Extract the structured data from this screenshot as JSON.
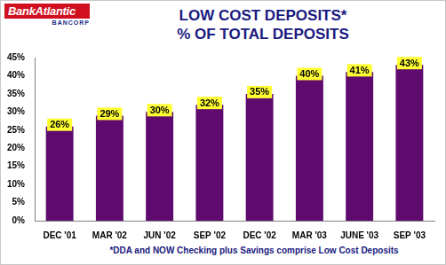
{
  "chart_data": {
    "type": "bar",
    "title": "LOW COST DEPOSITS*",
    "subtitle": "% OF TOTAL DEPOSITS",
    "logo": {
      "name": "BankAtlantic",
      "subtitle": "BANCORP"
    },
    "annotations": [
      "*DDA and NOW Checking plus Savings comprise Low Cost Deposits"
    ],
    "categories": [
      "DEC '01",
      "MAR '02",
      "JUN '02",
      "SEP '02",
      "DEC '02",
      "MAR '03",
      "JUNE '03",
      "SEP '03"
    ],
    "values": [
      26,
      29,
      30,
      32,
      35,
      40,
      41,
      43
    ],
    "value_labels": [
      "26%",
      "29%",
      "30%",
      "32%",
      "35%",
      "40%",
      "41%",
      "43%"
    ],
    "data_labels": true,
    "color": "#5e0a6e",
    "ylim": [
      0,
      45
    ],
    "yticks": [
      {
        "value": 0,
        "label": "0%"
      },
      {
        "value": 5,
        "label": "5%"
      },
      {
        "value": 10,
        "label": "10%"
      },
      {
        "value": 15,
        "label": "15%"
      },
      {
        "value": 20,
        "label": "20%"
      },
      {
        "value": 25,
        "label": "25%"
      },
      {
        "value": 30,
        "label": "30%"
      },
      {
        "value": 35,
        "label": "35%"
      },
      {
        "value": 40,
        "label": "40%"
      },
      {
        "value": 45,
        "label": "45%"
      }
    ],
    "grid": false
  }
}
